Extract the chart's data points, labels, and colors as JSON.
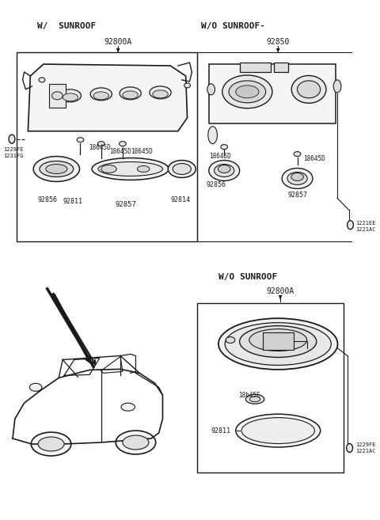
{
  "bg_color": "#ffffff",
  "line_color": "#1a1a1a",
  "text_color": "#1a1a1a",
  "figsize": [
    4.8,
    6.57
  ],
  "dpi": 100,
  "labels": {
    "w_sunroof": "W/  SUNROOF",
    "wo_sunroof_top": "W/O SUNROOF-",
    "wo_sunroof_bot": "W/O SUNROOF",
    "p92800A": "92800A",
    "p92850": "92850",
    "p18645D_1": "18645D",
    "p18645D_2": "18645D",
    "p18645D_3": "18645D",
    "p8645D": "18645D",
    "p18645D_r1": "18645D",
    "p18645D_r2": "18645D",
    "p92856": "92856",
    "p92811_tl": "92811",
    "p92857_tl": "92857",
    "p92814": "92814",
    "p1229FE_tl": "1229FE",
    "p1231FG": "1231FG",
    "p1221EE": "1221EE",
    "p1221AC_tr": "1221AC",
    "p92856_tr": "92856",
    "p92857_tr": "92857",
    "p18645E": "18b45E",
    "p92811_br": "92811",
    "p92800A_br": "92800A",
    "p1229FE_br": "1229FE",
    "p1221AC_br": "1221AC"
  }
}
